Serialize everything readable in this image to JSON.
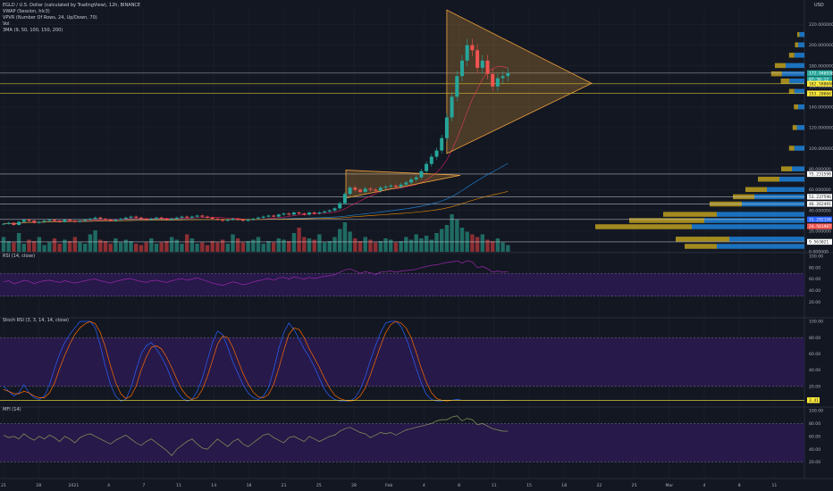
{
  "header": {
    "title": "EGLD / U.S. Dollar (calculated by TradingView), 12h, BINANCE",
    "studies": [
      "VWAP (Session, hlc3)",
      "VPVR (Number Of Rows, 24, Up/Down, 70)",
      "Vol",
      "3MA (9, 50, 100, 150, 200)"
    ],
    "currency": "USD"
  },
  "colors": {
    "background": "#131722",
    "bull": "#26a69a",
    "bear": "#ef5350",
    "triangle": "#f0a33c",
    "rsi": "#9c27b0",
    "stoch_k": "#2962ff",
    "stoch_d": "#ff6d00",
    "band": "#2a1a4e",
    "hline_yellow": "#ffeb3b",
    "vp_up": "#1e88e5",
    "vp_down": "#c8a71f"
  },
  "panes": {
    "rsi_label": "RSI (14, close)",
    "stoch_label": "Stoch RSI (3, 3, 14, 14, close)",
    "mfi_label": "MFI (14)"
  },
  "chart_data": [
    {
      "type": "candlestick",
      "title": "EGLD / U.S. Dollar (calculated by TradingView), 12h, BINANCE",
      "ylim": [
        0,
        235
      ],
      "y_ticks": [
        0,
        20,
        40,
        60,
        80,
        100,
        120,
        140,
        160,
        180,
        200,
        220
      ],
      "y_tick_labels": [
        "0.000000",
        "20.000000",
        "40.000000",
        "60.000000",
        "80.000000",
        "100.000000",
        "120.000000",
        "140.000000",
        "160.000000",
        "180.000000",
        "200.000000",
        "220.000000"
      ],
      "x_tick_labels": [
        "21",
        "28",
        "2021",
        "4",
        "7",
        "11",
        "14",
        "18",
        "21",
        "25",
        "28",
        "Feb",
        "4",
        "8",
        "11",
        "15",
        "18",
        "22",
        "25",
        "Mar",
        "4",
        "8",
        "11"
      ],
      "price_tags": [
        {
          "label": "172.946936",
          "value": 172.9,
          "color": "#26a69a"
        },
        {
          "label": "07:30:12",
          "value": 167,
          "color": "#26a69a"
        },
        {
          "label": "162.580048",
          "value": 162.6,
          "color": "#ffeb3b"
        },
        {
          "label": "153.206661",
          "value": 153.2,
          "color": "#ffeb3b"
        },
        {
          "label": "75.231598",
          "value": 75.2,
          "color": "#ffffff"
        },
        {
          "label": "53.237596",
          "value": 53.2,
          "color": "#ffffff"
        },
        {
          "label": "46.262491",
          "value": 46.3,
          "color": "#ffffff"
        },
        {
          "label": "31.292158",
          "value": 31.3,
          "color": "#2962ff"
        },
        {
          "label": "24.561987",
          "value": 24.6,
          "color": "#ef5350"
        },
        {
          "label": "9.563021",
          "value": 9.6,
          "color": "#ffffff"
        }
      ],
      "horizontal_levels": [
        172.9,
        162.6,
        153.2,
        75.2,
        53.2,
        46.3,
        31.3,
        9.6
      ],
      "triangles": [
        {
          "apex_price": 163,
          "high": 234,
          "low": 95
        },
        {
          "apex_price": 74,
          "high": 79,
          "low": 52
        }
      ],
      "close_series": [
        27,
        28,
        26,
        29,
        31,
        30,
        28,
        29,
        30,
        31,
        30,
        29,
        31,
        30,
        29,
        30,
        31,
        32,
        33,
        32,
        31,
        30,
        31,
        32,
        33,
        34,
        33,
        32,
        31,
        32,
        33,
        32,
        31,
        32,
        33,
        34,
        33,
        34,
        35,
        34,
        33,
        32,
        31,
        30,
        31,
        32,
        31,
        30,
        31,
        32,
        33,
        34,
        35,
        34,
        36,
        37,
        36,
        38,
        37,
        36,
        38,
        37,
        38,
        39,
        40,
        42,
        47,
        56,
        62,
        60,
        58,
        61,
        60,
        59,
        62,
        63,
        64,
        63,
        65,
        67,
        70,
        72,
        78,
        85,
        92,
        98,
        110,
        130,
        150,
        170,
        185,
        200,
        195,
        178,
        185,
        172,
        160,
        168,
        170,
        173
      ],
      "volume": [
        22,
        16,
        14,
        28,
        12,
        18,
        16,
        22,
        10,
        14,
        20,
        12,
        18,
        16,
        22,
        14,
        12,
        26,
        32,
        18,
        16,
        12,
        20,
        14,
        18,
        16,
        12,
        10,
        14,
        20,
        12,
        14,
        16,
        22,
        18,
        12,
        26,
        20,
        12,
        14,
        10,
        16,
        14,
        18,
        12,
        26,
        20,
        14,
        16,
        18,
        22,
        12,
        16,
        14,
        20,
        18,
        16,
        28,
        36,
        22,
        20,
        18,
        26,
        14,
        16,
        22,
        34,
        44,
        30,
        20,
        16,
        22,
        18,
        14,
        16,
        20,
        18,
        14,
        16,
        22,
        18,
        26,
        20,
        24,
        18,
        28,
        34,
        40,
        56,
        48,
        36,
        30,
        26,
        22,
        26,
        18,
        16,
        20,
        14,
        10
      ]
    },
    {
      "type": "line",
      "title": "RSI (14, close)",
      "ylim": [
        0,
        100
      ],
      "y_tick_labels": [
        "100.00",
        "80.00",
        "60.00",
        "40.00",
        "20.00"
      ],
      "values": [
        55,
        57,
        52,
        54,
        58,
        56,
        52,
        55,
        57,
        58,
        56,
        54,
        57,
        55,
        53,
        55,
        57,
        59,
        60,
        57,
        55,
        53,
        56,
        58,
        60,
        61,
        58,
        56,
        54,
        57,
        58,
        56,
        54,
        57,
        59,
        61,
        58,
        60,
        62,
        59,
        56,
        53,
        51,
        49,
        52,
        55,
        53,
        50,
        52,
        55,
        57,
        59,
        61,
        58,
        62,
        63,
        60,
        64,
        62,
        60,
        63,
        61,
        63,
        65,
        66,
        68,
        72,
        76,
        78,
        74,
        70,
        73,
        71,
        68,
        72,
        73,
        74,
        72,
        74,
        75,
        76,
        77,
        80,
        82,
        84,
        85,
        87,
        89,
        90,
        92,
        88,
        92,
        90,
        80,
        82,
        78,
        72,
        74,
        72,
        73
      ]
    },
    {
      "type": "line",
      "title": "Stoch RSI (3, 3, 14, 14, close)",
      "ylim": [
        0,
        100
      ],
      "y_tick_labels": [
        "100.00",
        "80.00",
        "60.00",
        "40.00",
        "20.00"
      ],
      "last_value_label": "3.41",
      "series": [
        {
          "name": "K",
          "values": [
            20,
            14,
            8,
            12,
            22,
            12,
            6,
            4,
            8,
            22,
            42,
            60,
            74,
            84,
            92,
            100,
            100,
            100,
            92,
            70,
            44,
            22,
            8,
            2,
            4,
            18,
            40,
            60,
            70,
            74,
            66,
            56,
            44,
            28,
            14,
            6,
            2,
            4,
            14,
            30,
            52,
            74,
            88,
            84,
            68,
            50,
            36,
            22,
            12,
            6,
            4,
            8,
            18,
            40,
            66,
            86,
            98,
            90,
            78,
            66,
            56,
            44,
            30,
            16,
            8,
            4,
            2,
            2,
            2,
            6,
            16,
            32,
            52,
            70,
            86,
            98,
            100,
            100,
            94,
            80,
            62,
            42,
            24,
            10,
            4,
            2,
            2,
            3,
            3,
            4,
            3,
            3,
            3,
            3,
            3,
            3,
            3,
            3,
            3,
            3
          ]
        },
        {
          "name": "D",
          "values": [
            16,
            14,
            11,
            11,
            14,
            12,
            8,
            6,
            6,
            12,
            24,
            42,
            58,
            72,
            84,
            92,
            97,
            100,
            97,
            86,
            68,
            45,
            25,
            11,
            5,
            8,
            20,
            40,
            56,
            68,
            70,
            66,
            56,
            43,
            29,
            16,
            8,
            4,
            6,
            16,
            32,
            52,
            72,
            82,
            80,
            68,
            52,
            36,
            23,
            13,
            7,
            6,
            10,
            22,
            42,
            64,
            84,
            92,
            90,
            80,
            66,
            55,
            43,
            30,
            18,
            9,
            5,
            3,
            2,
            3,
            8,
            18,
            34,
            52,
            70,
            86,
            96,
            100,
            98,
            92,
            80,
            62,
            42,
            25,
            12,
            5,
            3,
            2,
            3,
            3,
            3,
            3,
            3,
            3,
            3,
            3,
            3,
            3,
            3,
            3
          ]
        }
      ]
    },
    {
      "type": "line",
      "title": "MFI (14)",
      "ylim": [
        0,
        100
      ],
      "y_tick_labels": [
        "100.00",
        "80.00",
        "60.00",
        "40.00",
        "20.00"
      ],
      "values": [
        62,
        58,
        60,
        56,
        64,
        58,
        54,
        60,
        56,
        62,
        58,
        52,
        60,
        56,
        50,
        58,
        62,
        64,
        60,
        56,
        52,
        48,
        54,
        58,
        62,
        56,
        50,
        46,
        52,
        56,
        50,
        44,
        38,
        30,
        40,
        46,
        52,
        56,
        48,
        42,
        40,
        48,
        56,
        50,
        44,
        52,
        56,
        48,
        44,
        50,
        56,
        62,
        64,
        58,
        54,
        50,
        58,
        60,
        56,
        52,
        60,
        56,
        52,
        56,
        60,
        62,
        68,
        72,
        74,
        70,
        66,
        64,
        58,
        62,
        66,
        64,
        66,
        62,
        66,
        70,
        72,
        74,
        76,
        78,
        80,
        84,
        86,
        86,
        90,
        92,
        84,
        88,
        86,
        78,
        80,
        76,
        72,
        70,
        68,
        68
      ]
    }
  ]
}
